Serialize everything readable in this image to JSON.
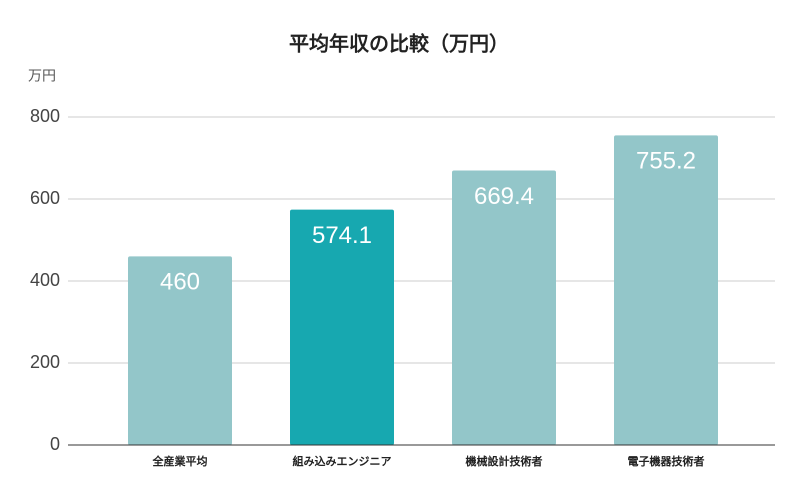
{
  "chart_data": {
    "type": "bar",
    "title": "平均年収の比較（万円）",
    "ylabel": "万円",
    "categories": [
      "全産業平均",
      "組み込みエンジニア",
      "機械設計技術者",
      "電子機器技術者"
    ],
    "values": [
      460,
      574.1,
      669.4,
      755.2
    ],
    "colors": [
      "#93c6c9",
      "#17a8b0",
      "#93c6c9",
      "#93c6c9"
    ],
    "ylim": [
      0,
      800
    ],
    "yticks": [
      0,
      200,
      400,
      600,
      800
    ],
    "grid": true
  }
}
